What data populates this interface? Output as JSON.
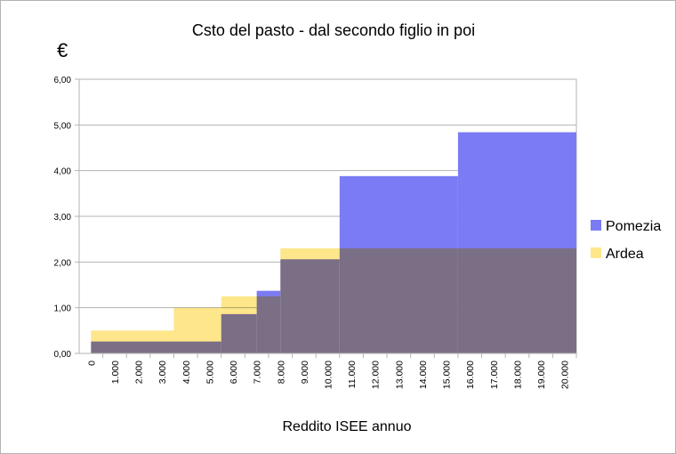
{
  "chart_data": {
    "type": "area",
    "title": "Csto del pasto - dal secondo figlio in poi",
    "unit_label": "€",
    "xlabel": "Reddito ISEE annuo",
    "ylabel": "",
    "ylim": [
      0,
      6
    ],
    "y_ticks": [
      "0,00",
      "1,00",
      "2,00",
      "3,00",
      "4,00",
      "5,00",
      "6,00"
    ],
    "x_ticks": [
      "0",
      "1.000",
      "2.000",
      "3.000",
      "4.000",
      "5.000",
      "6.000",
      "7.000",
      "8.000",
      "9.000",
      "10.000",
      "11.000",
      "12.000",
      "13.000",
      "14.000",
      "15.000",
      "16.000",
      "17.000",
      "18.000",
      "19.000",
      "20.000"
    ],
    "grid": true,
    "legend_position": "right",
    "series": [
      {
        "name": "Pomezia",
        "color": "#7b7bf5",
        "steps": [
          {
            "from": 0,
            "to": 5500,
            "value": 0.26
          },
          {
            "from": 5500,
            "to": 7000,
            "value": 0.86
          },
          {
            "from": 7000,
            "to": 8000,
            "value": 1.37
          },
          {
            "from": 8000,
            "to": 10500,
            "value": 2.06
          },
          {
            "from": 10500,
            "to": 15500,
            "value": 3.88
          },
          {
            "from": 15500,
            "to": 20500,
            "value": 4.84
          }
        ]
      },
      {
        "name": "Ardea",
        "color": "#fee68b",
        "steps": [
          {
            "from": 0,
            "to": 3500,
            "value": 0.5
          },
          {
            "from": 3500,
            "to": 5500,
            "value": 1.0
          },
          {
            "from": 5500,
            "to": 7000,
            "value": 1.25
          },
          {
            "from": 7000,
            "to": 8000,
            "value": 1.25
          },
          {
            "from": 8000,
            "to": 10500,
            "value": 2.3
          },
          {
            "from": 10500,
            "to": 20500,
            "value": 2.3
          }
        ]
      }
    ]
  }
}
